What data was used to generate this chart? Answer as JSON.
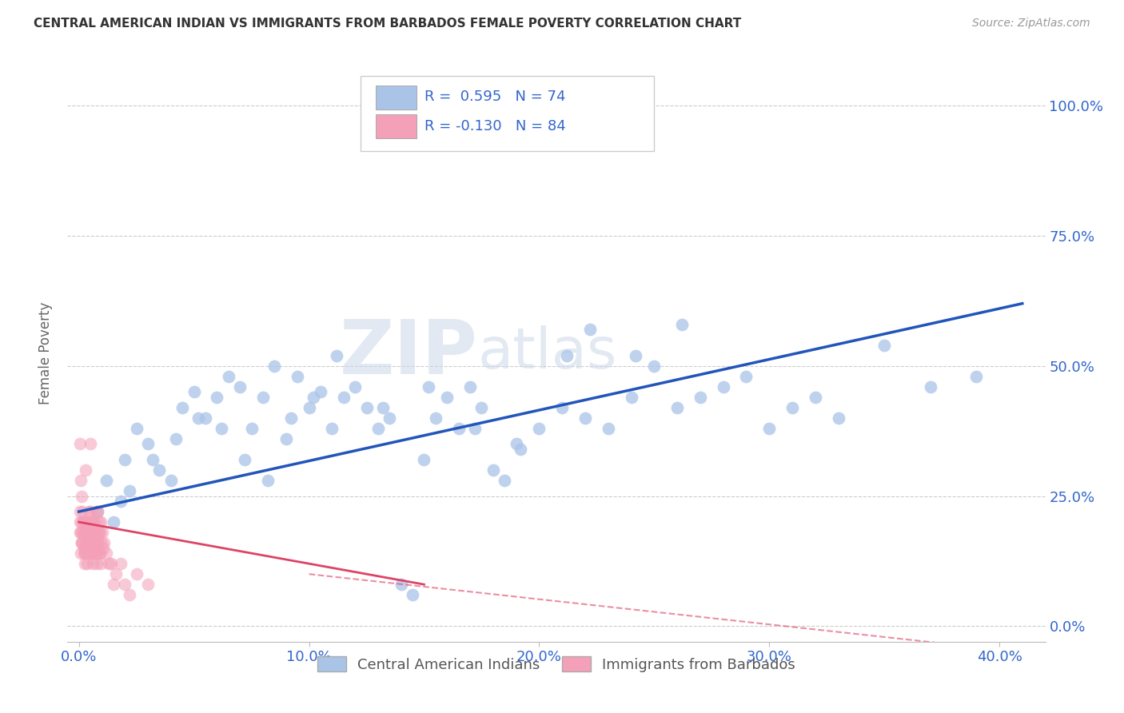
{
  "title": "CENTRAL AMERICAN INDIAN VS IMMIGRANTS FROM BARBADOS FEMALE POVERTY CORRELATION CHART",
  "source": "Source: ZipAtlas.com",
  "xlabel_ticks": [
    "0.0%",
    "10.0%",
    "20.0%",
    "30.0%",
    "40.0%"
  ],
  "xlabel_vals": [
    0,
    10,
    20,
    30,
    40
  ],
  "ylabel": "Female Poverty",
  "ylabel_ticks": [
    "0.0%",
    "25.0%",
    "50.0%",
    "75.0%",
    "100.0%"
  ],
  "ylabel_vals": [
    0,
    25,
    50,
    75,
    100
  ],
  "xlim": [
    -0.5,
    42
  ],
  "ylim": [
    -3,
    108
  ],
  "blue_color": "#aac4e8",
  "pink_color": "#f4a0b8",
  "blue_line_color": "#2255bb",
  "pink_line_color": "#dd4466",
  "R_blue": 0.595,
  "N_blue": 74,
  "R_pink": -0.13,
  "N_pink": 84,
  "legend_label_blue": "Central American Indians",
  "legend_label_pink": "Immigrants from Barbados",
  "watermark_zip": "ZIP",
  "watermark_atlas": "atlas",
  "blue_scatter_x": [
    0.8,
    1.2,
    1.5,
    2.0,
    1.8,
    2.5,
    3.0,
    3.5,
    4.0,
    4.5,
    5.0,
    5.5,
    6.0,
    6.5,
    7.0,
    7.5,
    8.0,
    8.5,
    9.0,
    9.5,
    10.0,
    10.5,
    11.0,
    11.5,
    12.0,
    12.5,
    13.0,
    13.5,
    14.0,
    14.5,
    15.0,
    15.5,
    16.0,
    16.5,
    17.0,
    17.5,
    18.0,
    18.5,
    19.0,
    20.0,
    21.0,
    22.0,
    23.0,
    24.0,
    25.0,
    26.0,
    27.0,
    28.0,
    29.0,
    30.0,
    31.0,
    32.0,
    33.0,
    35.0,
    37.0,
    39.0,
    2.2,
    3.2,
    4.2,
    5.2,
    6.2,
    7.2,
    8.2,
    9.2,
    10.2,
    11.2,
    13.2,
    15.2,
    17.2,
    19.2,
    21.2,
    22.2,
    24.2,
    26.2
  ],
  "blue_scatter_y": [
    22,
    28,
    20,
    32,
    24,
    38,
    35,
    30,
    28,
    42,
    45,
    40,
    44,
    48,
    46,
    38,
    44,
    50,
    36,
    48,
    42,
    45,
    38,
    44,
    46,
    42,
    38,
    40,
    8,
    6,
    32,
    40,
    44,
    38,
    46,
    42,
    30,
    28,
    35,
    38,
    42,
    40,
    38,
    44,
    50,
    42,
    44,
    46,
    48,
    38,
    42,
    44,
    40,
    54,
    46,
    48,
    26,
    32,
    36,
    40,
    38,
    32,
    28,
    40,
    44,
    52,
    42,
    46,
    38,
    34,
    52,
    57,
    52,
    58
  ],
  "pink_scatter_x": [
    0.05,
    0.08,
    0.1,
    0.12,
    0.15,
    0.18,
    0.2,
    0.22,
    0.25,
    0.28,
    0.3,
    0.32,
    0.35,
    0.38,
    0.4,
    0.42,
    0.45,
    0.48,
    0.5,
    0.52,
    0.55,
    0.58,
    0.6,
    0.62,
    0.65,
    0.68,
    0.7,
    0.72,
    0.75,
    0.78,
    0.8,
    0.82,
    0.85,
    0.88,
    0.9,
    0.92,
    0.95,
    0.98,
    1.0,
    1.05,
    0.06,
    0.11,
    0.16,
    0.21,
    0.26,
    0.31,
    0.36,
    0.41,
    0.46,
    0.51,
    0.56,
    0.61,
    0.66,
    0.71,
    0.76,
    0.81,
    0.86,
    0.91,
    0.96,
    1.1,
    1.2,
    1.4,
    1.6,
    1.8,
    2.0,
    2.5,
    3.0,
    0.04,
    0.09,
    0.14,
    0.19,
    0.24,
    0.29,
    0.34,
    0.39,
    0.44,
    0.49,
    0.54,
    0.59,
    0.64,
    0.69,
    0.74,
    0.79,
    1.3
  ],
  "pink_scatter_y": [
    18,
    14,
    20,
    16,
    22,
    18,
    15,
    20,
    12,
    16,
    18,
    14,
    20,
    16,
    18,
    14,
    22,
    18,
    16,
    20,
    14,
    18,
    12,
    16,
    18,
    14,
    20,
    16,
    18,
    14,
    22,
    18,
    16,
    20,
    14,
    18,
    12,
    16,
    18,
    15,
    20,
    16,
    18,
    14,
    20,
    16,
    18,
    14,
    22,
    18,
    16,
    20,
    14,
    18,
    12,
    16,
    18,
    14,
    20,
    16,
    14,
    12,
    10,
    12,
    8,
    10,
    8,
    22,
    18,
    16,
    20,
    14,
    18,
    12,
    16,
    18,
    14,
    20,
    16,
    18,
    14,
    22,
    18,
    12
  ],
  "pink_extra_x": [
    0.03,
    0.07,
    0.13,
    0.5,
    0.3,
    1.5,
    2.2
  ],
  "pink_extra_y": [
    35,
    28,
    25,
    35,
    30,
    8,
    6
  ],
  "blue_trend_x0": 0,
  "blue_trend_x1": 41,
  "blue_trend_y0": 22,
  "blue_trend_y1": 62,
  "pink_trend_x0": 0,
  "pink_trend_x1": 15,
  "pink_trend_y0": 20,
  "pink_trend_y1": 8,
  "pink_trend_dash_x0": 10,
  "pink_trend_dash_x1": 41,
  "pink_trend_dash_y0": 10,
  "pink_trend_dash_y1": -5
}
